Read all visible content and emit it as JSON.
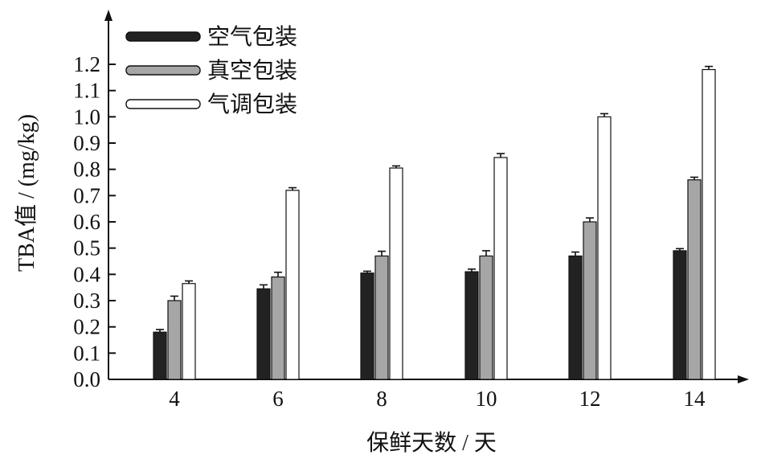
{
  "chart_data": {
    "type": "bar",
    "categories": [
      "4",
      "6",
      "8",
      "10",
      "12",
      "14"
    ],
    "series": [
      {
        "name": "空气包装",
        "color": "#222222",
        "values": [
          0.18,
          0.345,
          0.405,
          0.41,
          0.47,
          0.49
        ],
        "errors": [
          0.01,
          0.015,
          0.007,
          0.01,
          0.015,
          0.008
        ]
      },
      {
        "name": "真空包装",
        "color": "#a6a6a6",
        "values": [
          0.3,
          0.39,
          0.47,
          0.47,
          0.6,
          0.76
        ],
        "errors": [
          0.017,
          0.018,
          0.018,
          0.02,
          0.015,
          0.01
        ]
      },
      {
        "name": "气调包装",
        "color": "#ffffff",
        "values": [
          0.365,
          0.72,
          0.805,
          0.845,
          1.0,
          1.18
        ],
        "errors": [
          0.01,
          0.01,
          0.008,
          0.015,
          0.012,
          0.012
        ]
      }
    ],
    "xlabel": "保鲜天数 / 天",
    "ylabel": "TBA值 / (mg/kg)",
    "ylim": [
      0,
      1.2
    ],
    "yticks": [
      "0.0",
      "0.1",
      "0.2",
      "0.3",
      "0.4",
      "0.5",
      "0.6",
      "0.7",
      "0.8",
      "0.9",
      "1.0",
      "1.1",
      "1.2"
    ],
    "legend_position": "top-left",
    "grid": false
  }
}
